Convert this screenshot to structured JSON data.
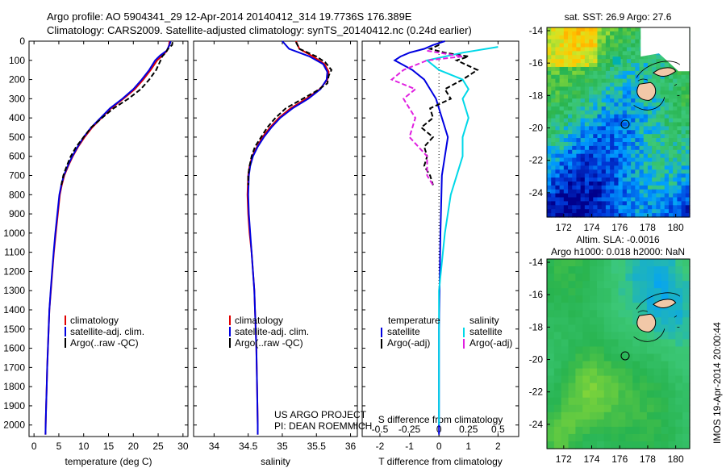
{
  "header": {
    "line1": "Argo profile: AO 5904341_29 12-Apr-2014 20140412_314 19.7736S 176.389E",
    "line2": "Climatology: CARS2009. Satellite-adjusted climatology: synTS_20140412.nc (0.24d earlier)"
  },
  "colors": {
    "clim": "#e00000",
    "sat": "#0000e0",
    "argo": "#000000",
    "sat_s": "#00d8e8",
    "argo_s": "#e020e0"
  },
  "chart_data": [
    {
      "id": "temperature",
      "type": "line",
      "xlabel": "temperature (deg C)",
      "ylabel": "",
      "xlim": [
        -1,
        31
      ],
      "ylim": [
        2060,
        0
      ],
      "xticks": [
        0,
        5,
        10,
        15,
        20,
        25,
        30
      ],
      "yticks": [
        0,
        100,
        200,
        300,
        400,
        500,
        600,
        700,
        800,
        900,
        1000,
        1100,
        1200,
        1300,
        1400,
        1500,
        1600,
        1700,
        1800,
        1900,
        2000
      ],
      "legend": [
        "climatology",
        "satellite-adj. clim.",
        "Argo(..raw -QC)"
      ],
      "series": [
        {
          "name": "climatology",
          "style": "clim",
          "points": [
            [
              27.3,
              0
            ],
            [
              27.2,
              20
            ],
            [
              26.8,
              50
            ],
            [
              25.9,
              75
            ],
            [
              24.8,
              100
            ],
            [
              23.5,
              150
            ],
            [
              22.0,
              200
            ],
            [
              20.3,
              250
            ],
            [
              18.0,
              300
            ],
            [
              15.5,
              350
            ],
            [
              13.6,
              400
            ],
            [
              11.7,
              450
            ],
            [
              10.2,
              500
            ],
            [
              8.9,
              550
            ],
            [
              7.8,
              600
            ],
            [
              6.9,
              650
            ],
            [
              6.1,
              700
            ],
            [
              5.6,
              750
            ],
            [
              5.2,
              800
            ],
            [
              4.8,
              900
            ],
            [
              4.4,
              1000
            ],
            [
              4.0,
              1100
            ],
            [
              3.7,
              1200
            ],
            [
              3.4,
              1300
            ],
            [
              3.1,
              1400
            ],
            [
              2.95,
              1500
            ],
            [
              2.8,
              1600
            ],
            [
              2.65,
              1700
            ],
            [
              2.55,
              1800
            ],
            [
              2.45,
              1900
            ],
            [
              2.35,
              2000
            ],
            [
              2.32,
              2050
            ]
          ]
        },
        {
          "name": "satellite-adj. clim.",
          "style": "sat",
          "points": [
            [
              27.5,
              0
            ],
            [
              27.3,
              20
            ],
            [
              26.7,
              50
            ],
            [
              25.4,
              75
            ],
            [
              24.4,
              100
            ],
            [
              23.2,
              150
            ],
            [
              21.7,
              200
            ],
            [
              20.0,
              250
            ],
            [
              17.8,
              300
            ],
            [
              15.3,
              350
            ],
            [
              13.4,
              400
            ],
            [
              11.5,
              450
            ],
            [
              10.0,
              500
            ],
            [
              8.8,
              550
            ],
            [
              7.7,
              600
            ],
            [
              6.8,
              650
            ],
            [
              6.0,
              700
            ],
            [
              5.5,
              750
            ],
            [
              5.1,
              800
            ],
            [
              4.7,
              900
            ],
            [
              4.3,
              1000
            ],
            [
              3.95,
              1100
            ],
            [
              3.65,
              1200
            ],
            [
              3.35,
              1300
            ],
            [
              3.1,
              1400
            ],
            [
              2.95,
              1500
            ],
            [
              2.8,
              1600
            ],
            [
              2.65,
              1700
            ],
            [
              2.55,
              1800
            ],
            [
              2.45,
              1900
            ],
            [
              2.35,
              2000
            ],
            [
              2.32,
              2050
            ]
          ]
        },
        {
          "name": "Argo(..raw -QC)",
          "style": "argo",
          "points": [
            [
              27.9,
              5
            ],
            [
              27.8,
              20
            ],
            [
              27.0,
              40
            ],
            [
              26.5,
              60
            ],
            [
              25.8,
              80
            ],
            [
              25.5,
              100
            ],
            [
              24.6,
              150
            ],
            [
              23.2,
              200
            ],
            [
              21.5,
              250
            ],
            [
              19.0,
              300
            ],
            [
              16.0,
              350
            ],
            [
              13.7,
              400
            ],
            [
              11.5,
              450
            ],
            [
              10.0,
              500
            ],
            [
              8.5,
              550
            ],
            [
              7.4,
              600
            ],
            [
              6.6,
              650
            ],
            [
              5.9,
              700
            ],
            [
              5.5,
              750
            ]
          ]
        }
      ]
    },
    {
      "id": "salinity",
      "type": "line",
      "xlabel": "salinity",
      "ylabel": "",
      "xlim": [
        33.7,
        36.1
      ],
      "ylim": [
        2060,
        0
      ],
      "xticks": [
        34,
        34.5,
        35,
        35.5,
        36
      ],
      "xtick_labels": [
        "34",
        "34.5",
        "35",
        "35.5",
        "36"
      ],
      "legend": [
        "climatology",
        "satellite-adj. clim.",
        "Argo(..raw -QC)"
      ],
      "series": [
        {
          "name": "climatology",
          "style": "clim",
          "points": [
            [
              35.2,
              0
            ],
            [
              35.25,
              40
            ],
            [
              35.45,
              80
            ],
            [
              35.62,
              120
            ],
            [
              35.68,
              160
            ],
            [
              35.66,
              200
            ],
            [
              35.55,
              250
            ],
            [
              35.35,
              300
            ],
            [
              35.12,
              350
            ],
            [
              34.95,
              400
            ],
            [
              34.82,
              450
            ],
            [
              34.71,
              500
            ],
            [
              34.63,
              550
            ],
            [
              34.56,
              600
            ],
            [
              34.52,
              650
            ],
            [
              34.5,
              700
            ],
            [
              34.49,
              800
            ],
            [
              34.5,
              900
            ],
            [
              34.52,
              1000
            ],
            [
              34.55,
              1100
            ],
            [
              34.57,
              1200
            ],
            [
              34.59,
              1300
            ],
            [
              34.6,
              1400
            ],
            [
              34.61,
              1500
            ],
            [
              34.62,
              1600
            ],
            [
              34.63,
              1800
            ],
            [
              34.64,
              2000
            ],
            [
              34.64,
              2050
            ]
          ]
        },
        {
          "name": "satellite-adj. clim.",
          "style": "sat",
          "points": [
            [
              35.0,
              0
            ],
            [
              35.1,
              40
            ],
            [
              35.4,
              80
            ],
            [
              35.6,
              120
            ],
            [
              35.66,
              160
            ],
            [
              35.65,
              200
            ],
            [
              35.56,
              250
            ],
            [
              35.38,
              300
            ],
            [
              35.15,
              350
            ],
            [
              34.97,
              400
            ],
            [
              34.84,
              450
            ],
            [
              34.73,
              500
            ],
            [
              34.64,
              550
            ],
            [
              34.57,
              600
            ],
            [
              34.53,
              650
            ],
            [
              34.51,
              700
            ],
            [
              34.5,
              800
            ],
            [
              34.51,
              900
            ],
            [
              34.53,
              1000
            ],
            [
              34.55,
              1100
            ],
            [
              34.57,
              1200
            ],
            [
              34.59,
              1300
            ],
            [
              34.6,
              1400
            ],
            [
              34.61,
              1500
            ],
            [
              34.62,
              1600
            ],
            [
              34.63,
              1800
            ],
            [
              34.64,
              2000
            ],
            [
              34.64,
              2050
            ]
          ]
        },
        {
          "name": "Argo(..raw -QC)",
          "style": "argo",
          "points": [
            [
              35.2,
              5
            ],
            [
              35.25,
              40
            ],
            [
              35.5,
              80
            ],
            [
              35.63,
              110
            ],
            [
              35.72,
              150
            ],
            [
              35.68,
              180
            ],
            [
              35.66,
              220
            ],
            [
              35.5,
              260
            ],
            [
              35.3,
              300
            ],
            [
              35.05,
              350
            ],
            [
              34.9,
              400
            ],
            [
              34.78,
              450
            ],
            [
              34.69,
              500
            ],
            [
              34.6,
              550
            ],
            [
              34.55,
              600
            ],
            [
              34.52,
              650
            ],
            [
              34.5,
              700
            ],
            [
              34.5,
              750
            ]
          ]
        }
      ]
    },
    {
      "id": "difference",
      "type": "line",
      "xlabel": "T difference from climatology",
      "xlabel2": "S difference from climatology",
      "xlim": [
        -2.6,
        2.7
      ],
      "ylim": [
        2060,
        0
      ],
      "xticks": [
        -2,
        -1,
        0,
        1,
        2
      ],
      "xticks_top": [
        -0.5,
        -0.25,
        0,
        0.25,
        0.5
      ],
      "xtick_top_labels": [
        "-0.5",
        "-0.25",
        "0",
        "0.25",
        "0.5"
      ],
      "legend_titles": [
        "temperature",
        "salinity"
      ],
      "legend_left": [
        "satellite",
        "Argo(-adj)"
      ],
      "legend_right": [
        "satellite",
        "Argo(-adj)"
      ],
      "series": [
        {
          "name": "T satellite",
          "style": "sat",
          "points": [
            [
              0.2,
              0
            ],
            [
              -0.2,
              20
            ],
            [
              -0.5,
              40
            ],
            [
              -1.0,
              60
            ],
            [
              -1.3,
              80
            ],
            [
              -1.5,
              100
            ],
            [
              -0.9,
              150
            ],
            [
              -0.5,
              200
            ],
            [
              -0.3,
              250
            ],
            [
              -0.1,
              300
            ],
            [
              0.1,
              400
            ],
            [
              0.2,
              450
            ],
            [
              0.3,
              500
            ],
            [
              0.2,
              600
            ],
            [
              0.1,
              700
            ],
            [
              0.05,
              1000
            ],
            [
              0.0,
              1500
            ],
            [
              0.0,
              2000
            ],
            [
              0.0,
              2050
            ]
          ]
        },
        {
          "name": "T Argo",
          "style": "argo",
          "points": [
            [
              0.0,
              20
            ],
            [
              -0.3,
              40
            ],
            [
              0.2,
              60
            ],
            [
              1.0,
              80
            ],
            [
              0.6,
              100
            ],
            [
              1.3,
              150
            ],
            [
              0.8,
              200
            ],
            [
              0.2,
              250
            ],
            [
              0.4,
              300
            ],
            [
              -0.3,
              350
            ],
            [
              -0.2,
              400
            ],
            [
              -0.6,
              450
            ],
            [
              -0.2,
              500
            ],
            [
              -0.5,
              550
            ],
            [
              -0.4,
              600
            ],
            [
              -0.5,
              650
            ],
            [
              -0.3,
              700
            ],
            [
              -0.2,
              750
            ]
          ]
        },
        {
          "name": "S satellite",
          "style": "sat_s",
          "points": [
            [
              0.5,
              30
            ],
            [
              0.2,
              60
            ],
            [
              -0.1,
              100
            ],
            [
              0.0,
              150
            ],
            [
              0.2,
              200
            ],
            [
              0.25,
              250
            ],
            [
              0.2,
              300
            ],
            [
              0.25,
              400
            ],
            [
              0.2,
              500
            ],
            [
              0.2,
              600
            ],
            [
              0.1,
              800
            ],
            [
              0.05,
              1000
            ],
            [
              0.0,
              1300
            ],
            [
              0.0,
              1700
            ],
            [
              0.0,
              2000
            ]
          ]
        },
        {
          "name": "S Argo",
          "style": "argo_s",
          "points": [
            [
              -0.1,
              50
            ],
            [
              0.2,
              80
            ],
            [
              -0.1,
              100
            ],
            [
              -0.3,
              150
            ],
            [
              -0.4,
              200
            ],
            [
              -0.2,
              250
            ],
            [
              -0.3,
              300
            ],
            [
              -0.2,
              400
            ],
            [
              -0.25,
              500
            ],
            [
              -0.1,
              600
            ],
            [
              -0.1,
              700
            ],
            [
              -0.05,
              750
            ]
          ]
        }
      ]
    },
    {
      "id": "sst_map",
      "type": "heatmap",
      "title": "sat. SST: 26.9 Argo: 27.6",
      "xticks": [
        172,
        174,
        176,
        178,
        180
      ],
      "yticks": [
        -14,
        -16,
        -18,
        -20,
        -22,
        -24
      ],
      "xlim": [
        170.8,
        181
      ],
      "ylim": [
        -25.5,
        -13.8
      ],
      "argo_position": [
        176.389,
        -19.7736
      ]
    },
    {
      "id": "sla_map",
      "type": "heatmap",
      "title1": "Altim. SLA: -0.0016",
      "title2": "Argo h1000: 0.018 h2000: NaN",
      "xticks": [
        172,
        174,
        176,
        178,
        180
      ],
      "yticks": [
        -14,
        -16,
        -18,
        -20,
        -22,
        -24
      ],
      "xlim": [
        170.8,
        181
      ],
      "ylim": [
        -25.5,
        -13.8
      ],
      "argo_position": [
        176.389,
        -19.7736
      ]
    }
  ],
  "annotations": {
    "project": "US ARGO PROJECT",
    "pi": "PI: DEAN ROEMMICH",
    "stamp": "IMOS 19-Apr-2014 20:00:44"
  }
}
